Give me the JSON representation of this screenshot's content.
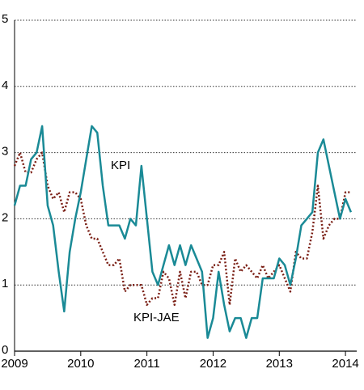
{
  "chart_data": {
    "type": "line",
    "x": [
      2009.0,
      2009.083,
      2009.167,
      2009.25,
      2009.333,
      2009.417,
      2009.5,
      2009.583,
      2009.667,
      2009.75,
      2009.833,
      2009.917,
      2010.0,
      2010.083,
      2010.167,
      2010.25,
      2010.333,
      2010.417,
      2010.5,
      2010.583,
      2010.667,
      2010.75,
      2010.833,
      2010.917,
      2011.0,
      2011.083,
      2011.167,
      2011.25,
      2011.333,
      2011.417,
      2011.5,
      2011.583,
      2011.667,
      2011.75,
      2011.833,
      2011.917,
      2012.0,
      2012.083,
      2012.167,
      2012.25,
      2012.333,
      2012.417,
      2012.5,
      2012.583,
      2012.667,
      2012.75,
      2012.833,
      2012.917,
      2013.0,
      2013.083,
      2013.167,
      2013.25,
      2013.333,
      2013.417,
      2013.5,
      2013.583,
      2013.667,
      2013.75,
      2013.833,
      2013.917,
      2014.0,
      2014.083
    ],
    "series": [
      {
        "name": "KPI",
        "color": "#1a8a96",
        "style": "solid",
        "values": [
          2.2,
          2.5,
          2.5,
          2.9,
          3.0,
          3.4,
          2.2,
          1.9,
          1.2,
          0.6,
          1.5,
          2.0,
          2.4,
          2.9,
          3.4,
          3.3,
          2.5,
          1.9,
          1.9,
          1.9,
          1.7,
          2.0,
          1.9,
          2.8,
          2.0,
          1.2,
          1.0,
          1.3,
          1.6,
          1.3,
          1.6,
          1.3,
          1.6,
          1.4,
          1.2,
          0.2,
          0.5,
          1.2,
          0.7,
          0.3,
          0.5,
          0.5,
          0.2,
          0.5,
          0.5,
          1.1,
          1.1,
          1.1,
          1.4,
          1.3,
          1.0,
          1.4,
          1.9,
          2.0,
          2.1,
          3.0,
          3.2,
          2.8,
          2.4,
          2.0,
          2.3,
          2.1
        ]
      },
      {
        "name": "KPI-JAE",
        "color": "#7a1e14",
        "style": "dotted",
        "values": [
          2.8,
          3.0,
          2.7,
          2.7,
          2.9,
          3.0,
          2.5,
          2.3,
          2.4,
          2.1,
          2.4,
          2.4,
          2.3,
          1.9,
          1.7,
          1.7,
          1.5,
          1.3,
          1.3,
          1.4,
          0.9,
          1.0,
          1.0,
          1.0,
          0.7,
          0.8,
          0.8,
          1.2,
          1.1,
          0.7,
          1.2,
          0.8,
          1.2,
          1.2,
          1.0,
          1.0,
          1.3,
          1.3,
          1.5,
          0.7,
          1.4,
          1.2,
          1.3,
          1.2,
          1.1,
          1.3,
          1.1,
          1.2,
          1.3,
          1.1,
          0.9,
          1.5,
          1.4,
          1.4,
          1.8,
          2.5,
          1.7,
          1.9,
          2.0,
          2.0,
          2.4,
          2.4
        ]
      }
    ],
    "xlim": [
      2009.0,
      2014.17
    ],
    "xticks": [
      2009,
      2010,
      2011,
      2012,
      2013,
      2014
    ],
    "ylim": [
      0,
      5
    ],
    "yticks": [
      0,
      1,
      2,
      3,
      4,
      5
    ],
    "grid": true
  }
}
